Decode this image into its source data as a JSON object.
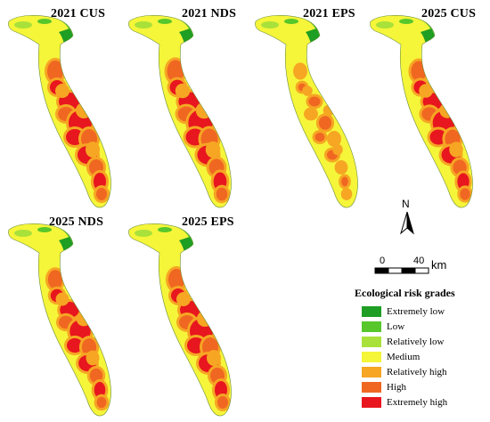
{
  "figure": {
    "panels": [
      {
        "title": "2021  CUS"
      },
      {
        "title": "2021  NDS"
      },
      {
        "title": "2021  EPS"
      },
      {
        "title": "2025  CUS"
      },
      {
        "title": "2025  NDS"
      },
      {
        "title": "2025  EPS"
      }
    ]
  },
  "north_arrow": {
    "label": "N"
  },
  "scale_bar": {
    "start": "0",
    "end": "40",
    "unit": "km"
  },
  "legend": {
    "title": "Ecological risk grades",
    "items": [
      {
        "label": "Extremely low",
        "color": "#1e9e23"
      },
      {
        "label": "Low",
        "color": "#57c72b"
      },
      {
        "label": "Relatively low",
        "color": "#a8e13a"
      },
      {
        "label": "Medium",
        "color": "#f5f53a"
      },
      {
        "label": "Relatively high",
        "color": "#f6a623"
      },
      {
        "label": "High",
        "color": "#f06722"
      },
      {
        "label": "Extremely high",
        "color": "#e8161e"
      }
    ]
  }
}
